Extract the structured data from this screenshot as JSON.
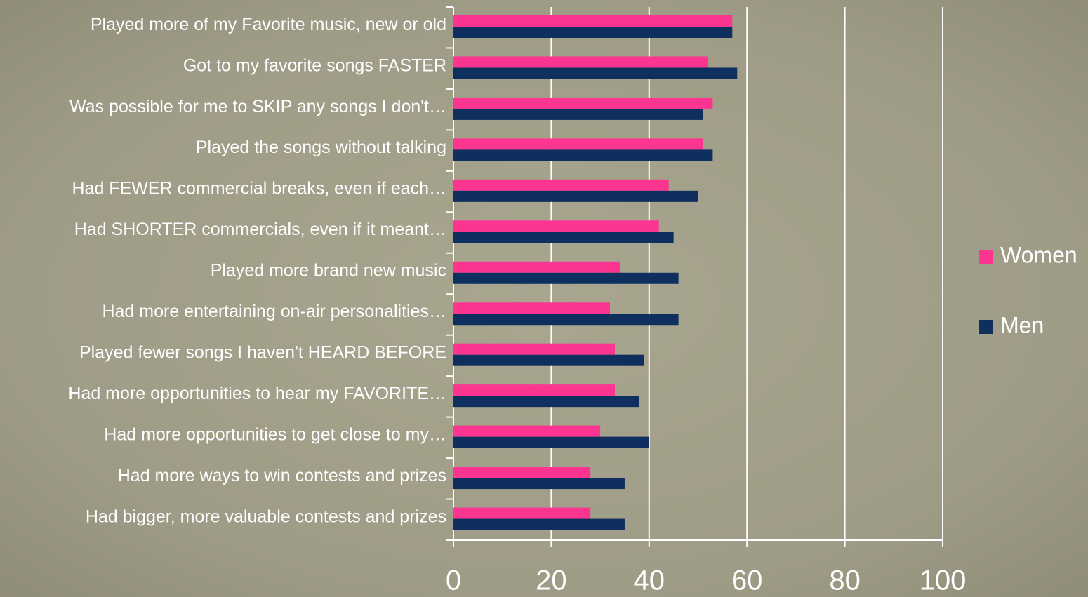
{
  "chart_data": {
    "type": "barh",
    "categories": [
      "Played more of my Favorite music, new or old",
      "Got to my favorite songs FASTER",
      "Was possible for me to SKIP any songs I don't…",
      "Played the songs without talking",
      "Had FEWER commercial breaks, even if each…",
      "Had SHORTER commercials, even if it meant…",
      "Played more brand new music",
      "Had more entertaining on-air personalities…",
      "Played fewer songs I haven't HEARD BEFORE",
      "Had more opportunities to hear my FAVORITE…",
      "Had more opportunities to get close to my…",
      "Had more ways to win contests and prizes",
      "Had bigger, more valuable contests and prizes"
    ],
    "series": [
      {
        "name": "Women",
        "color": "#fb3590",
        "values": [
          57,
          52,
          53,
          51,
          44,
          42,
          34,
          32,
          33,
          33,
          30,
          28,
          28
        ]
      },
      {
        "name": "Men",
        "color": "#0f2f5e",
        "values": [
          57,
          58,
          51,
          53,
          50,
          45,
          46,
          46,
          39,
          38,
          40,
          35,
          35
        ]
      }
    ],
    "xlim": [
      0,
      100
    ],
    "xticks": [
      0,
      20,
      40,
      60,
      80,
      100
    ],
    "grid": true,
    "legend": "right"
  }
}
